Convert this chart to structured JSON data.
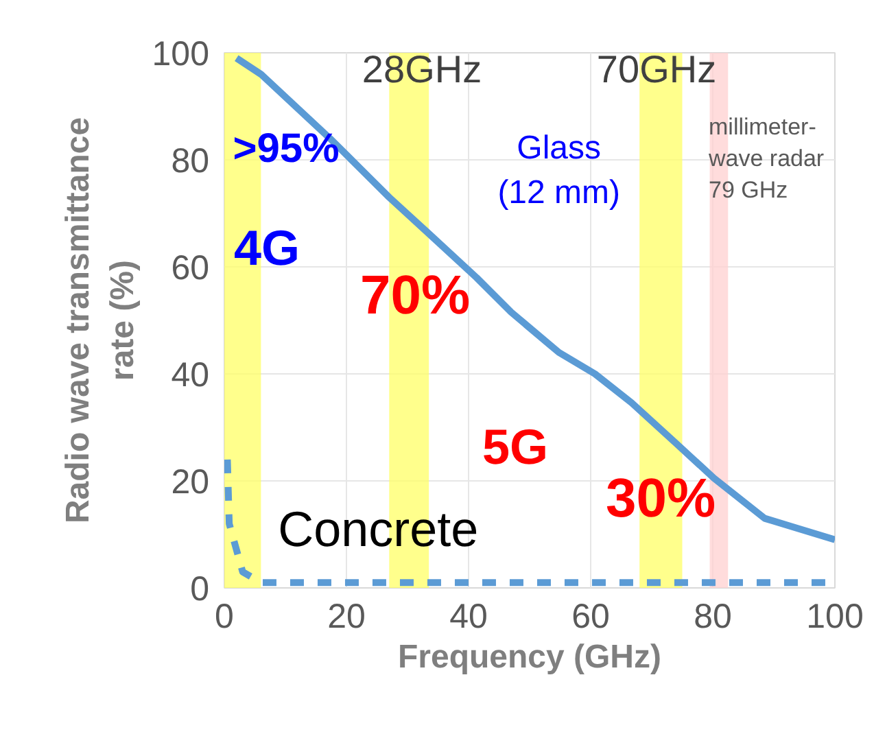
{
  "chart_data": {
    "type": "line",
    "xlabel": "Frequency (GHz)",
    "ylabel": "Radio wave transmittance\nrate (%)",
    "xlim": [
      0,
      100
    ],
    "ylim": [
      0,
      100
    ],
    "xticks": [
      0,
      20,
      40,
      60,
      80,
      100
    ],
    "yticks": [
      0,
      20,
      40,
      60,
      80,
      100
    ],
    "grid": true,
    "series": [
      {
        "name": "Glass\n(12 mm)",
        "color": "#5b9bd5",
        "line_style": "solid",
        "x": [
          2,
          6,
          17.3,
          27,
          33.7,
          41.3,
          47,
          54.8,
          60.7,
          66.7,
          74,
          80.2,
          88.5,
          100
        ],
        "values": [
          99,
          96,
          84,
          73,
          66,
          58,
          51.5,
          44,
          40,
          34.6,
          27,
          20.5,
          13,
          9
        ]
      },
      {
        "name": "Concrete",
        "color": "#5b9bd5",
        "line_style": "dashed",
        "x": [
          0.5,
          0.8,
          3,
          6,
          20,
          40,
          60,
          80,
          100
        ],
        "values": [
          24,
          12,
          3,
          1,
          1,
          1,
          1,
          1,
          1
        ]
      }
    ],
    "bands": [
      {
        "axis": "x",
        "from": 0,
        "to": 6,
        "color": "#ffff66"
      },
      {
        "axis": "x",
        "from": 27,
        "to": 33.5,
        "color": "#ffff66"
      },
      {
        "axis": "x",
        "from": 68,
        "to": 75,
        "color": "#ffff66"
      },
      {
        "axis": "x",
        "from": 79.5,
        "to": 82.5,
        "color": "#ffd0d0"
      }
    ],
    "annotations": [
      ">95%",
      "4G",
      "28GHz",
      "70GHz",
      "millimeter-\nwave radar\n79 GHz",
      "70%",
      "5G",
      "30%"
    ]
  }
}
